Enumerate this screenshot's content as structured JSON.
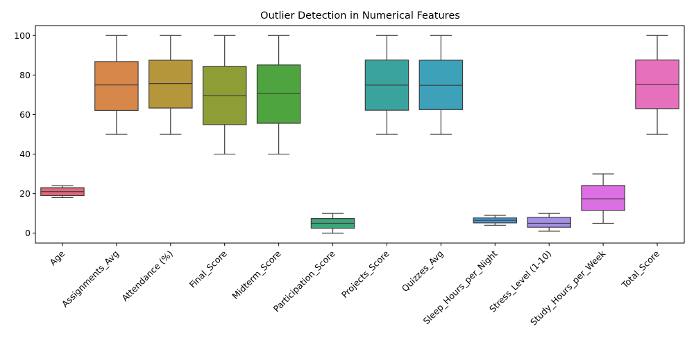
{
  "chart_data": {
    "type": "box",
    "title": "Outlier Detection in Numerical Features",
    "xlabel": "",
    "ylabel": "",
    "ylim": [
      -5,
      105
    ],
    "yticks": [
      0,
      20,
      40,
      60,
      80,
      100
    ],
    "grid": false,
    "legend": "none",
    "categories": [
      "Age",
      "Assignments_Avg",
      "Attendance (%)",
      "Final_Score",
      "Midterm_Score",
      "Participation_Score",
      "Projects_Score",
      "Quizzes_Avg",
      "Sleep_Hours_per_Night",
      "Stress_Level (1-10)",
      "Study_Hours_per_Week",
      "Total_Score"
    ],
    "boxes": [
      {
        "category": "Age",
        "min": 18,
        "q1": 19,
        "median": 21,
        "q3": 23,
        "max": 24,
        "color": "#e1697a"
      },
      {
        "category": "Assignments_Avg",
        "min": 50,
        "q1": 62.1,
        "median": 75,
        "q3": 86.8,
        "max": 100,
        "color": "#d7874a"
      },
      {
        "category": "Attendance (%)",
        "min": 50,
        "q1": 63.3,
        "median": 75.7,
        "q3": 87.5,
        "max": 100,
        "color": "#b5963a"
      },
      {
        "category": "Final_Score",
        "min": 40,
        "q1": 54.9,
        "median": 69.6,
        "q3": 84.4,
        "max": 100,
        "color": "#8f9d37"
      },
      {
        "category": "Midterm_Score",
        "min": 40,
        "q1": 55.6,
        "median": 70.6,
        "q3": 85.1,
        "max": 100,
        "color": "#4ea43e"
      },
      {
        "category": "Participation_Score",
        "min": 0,
        "q1": 2.5,
        "median": 5,
        "q3": 7.4,
        "max": 10,
        "color": "#3ca67a"
      },
      {
        "category": "Projects_Score",
        "min": 50,
        "q1": 62.2,
        "median": 74.9,
        "q3": 87.6,
        "max": 100,
        "color": "#3aa39d"
      },
      {
        "category": "Quizzes_Avg",
        "min": 50,
        "q1": 62.5,
        "median": 74.8,
        "q3": 87.5,
        "max": 100,
        "color": "#3ca1b9"
      },
      {
        "category": "Sleep_Hours_per_Night",
        "min": 4,
        "q1": 5.2,
        "median": 6.5,
        "q3": 7.7,
        "max": 9,
        "color": "#4a98d3"
      },
      {
        "category": "Stress_Level (1-10)",
        "min": 1,
        "q1": 3,
        "median": 5,
        "q3": 8,
        "max": 10,
        "color": "#a48fe4"
      },
      {
        "category": "Study_Hours_per_Week",
        "min": 5,
        "q1": 11.5,
        "median": 17.4,
        "q3": 24.1,
        "max": 30,
        "color": "#dc6fe4"
      },
      {
        "category": "Total_Score",
        "min": 50,
        "q1": 63,
        "median": 75.3,
        "q3": 87.6,
        "max": 100,
        "color": "#e770bd"
      }
    ]
  }
}
